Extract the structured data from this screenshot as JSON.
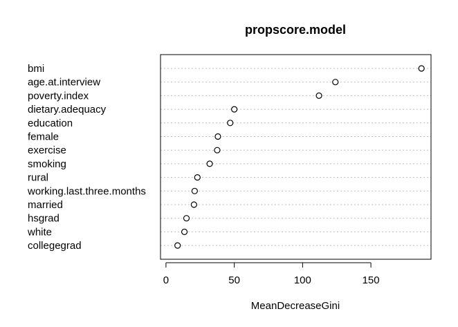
{
  "chart_data": {
    "type": "scatter",
    "title": "propscore.model",
    "xlabel": "MeanDecreaseGini",
    "ylabel": "",
    "xlim": [
      -4,
      194
    ],
    "xticks": [
      0,
      50,
      100,
      150
    ],
    "grid": true,
    "categories": [
      "bmi",
      "age.at.interview",
      "poverty.index",
      "dietary.adequacy",
      "education",
      "female",
      "exercise",
      "smoking",
      "rural",
      "working.last.three.months",
      "married",
      "hsgrad",
      "white",
      "collegegrad"
    ],
    "values": [
      187,
      124,
      112,
      50,
      47,
      38,
      37.5,
      32,
      23,
      21,
      20.5,
      15,
      13.5,
      8.5
    ]
  }
}
